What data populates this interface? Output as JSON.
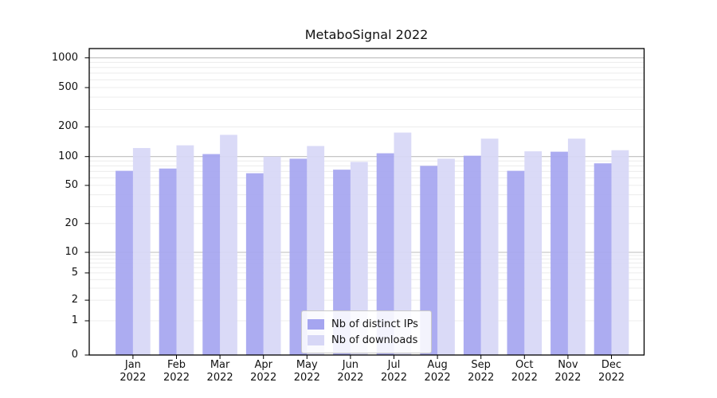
{
  "chart_data": {
    "type": "bar",
    "title": "MetaboSignal 2022",
    "categories": [
      "Jan 2022",
      "Feb 2022",
      "Mar 2022",
      "Apr 2022",
      "May 2022",
      "Jun 2022",
      "Jul 2022",
      "Aug 2022",
      "Sep 2022",
      "Oct 2022",
      "Nov 2022",
      "Dec 2022"
    ],
    "series": [
      {
        "name": "Nb of distinct IPs",
        "color": "#a5a5f0",
        "values": [
          71,
          75,
          106,
          67,
          95,
          73,
          108,
          80,
          102,
          71,
          112,
          85
        ]
      },
      {
        "name": "Nb of downloads",
        "color": "#d7d7f6",
        "values": [
          122,
          130,
          166,
          100,
          128,
          88,
          175,
          95,
          152,
          113,
          152,
          116
        ]
      }
    ],
    "xlabel": "",
    "ylabel": "",
    "yscale": "symlog",
    "yticks": [
      0,
      1,
      2,
      5,
      10,
      20,
      50,
      100,
      200,
      500,
      1000
    ],
    "ylim": [
      0,
      1250
    ],
    "grid": "horizontal",
    "legend_position": "bottom-center"
  },
  "colors": {
    "background": "#ffffff",
    "spine": "#000000",
    "grid_minor": "#ececec",
    "grid_major": "#bdbdbd",
    "text": "#111111"
  }
}
